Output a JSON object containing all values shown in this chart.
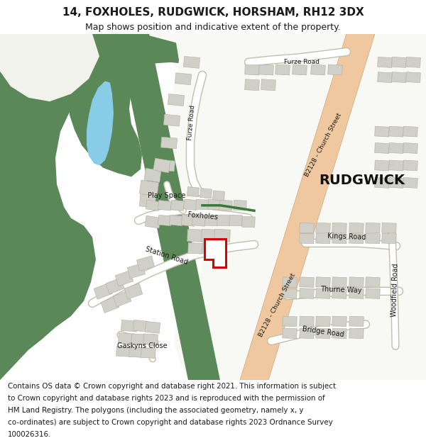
{
  "title_line1": "14, FOXHOLES, RUDGWICK, HORSHAM, RH12 3DX",
  "title_line2": "Map shows position and indicative extent of the property.",
  "footer_lines": [
    "Contains OS data © Crown copyright and database right 2021. This information is subject",
    "to Crown copyright and database rights 2023 and is reproduced with the permission of",
    "HM Land Registry. The polygons (including the associated geometry, namely x, y",
    "co-ordinates) are subject to Crown copyright and database rights 2023 Ordnance Survey",
    "100026316."
  ],
  "bg_color": "#ffffff",
  "map_bg": "#f2f2ec",
  "green": "#5a8858",
  "blue_lake": "#88cce8",
  "road_main": "#f0c8a0",
  "road_main_edge": "#d0a878",
  "bld_fill": "#d0d0c8",
  "bld_edge": "#b0b0a0",
  "plot_color": "#dd0000",
  "text_color": "#1a1a1a"
}
